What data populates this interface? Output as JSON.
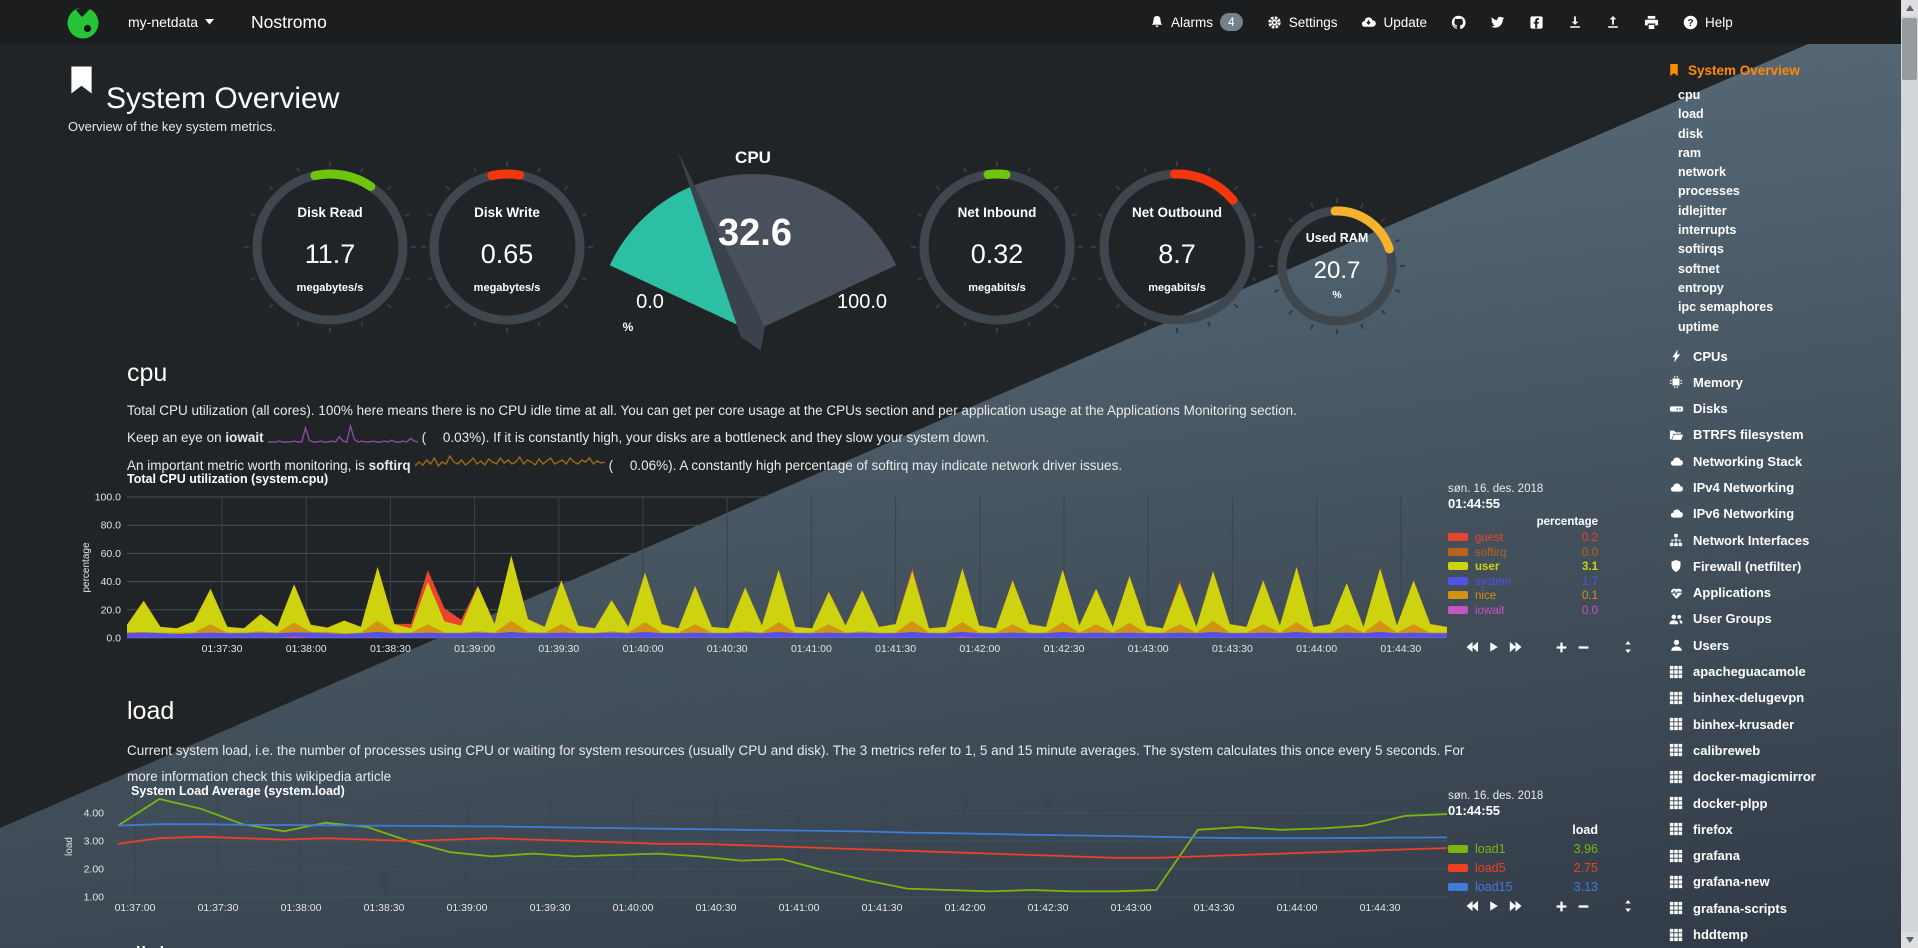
{
  "nav": {
    "hostname": "my-netdata",
    "title": "Nostromo",
    "alarms_label": "Alarms",
    "alarms_count": "4",
    "settings_label": "Settings",
    "update_label": "Update",
    "help_label": "Help",
    "icon_buttons": [
      "github",
      "twitter",
      "facebook",
      "export",
      "import",
      "print"
    ]
  },
  "page": {
    "title": "System Overview",
    "subtitle": "Overview of the key system metrics."
  },
  "gauges": [
    {
      "label": "Disk Read",
      "value": "11.7",
      "units": "megabytes/s",
      "color": "#6fc40e",
      "arc": [
        -12,
        34
      ]
    },
    {
      "label": "Disk Write",
      "value": "0.65",
      "units": "megabytes/s",
      "color": "#f3360b",
      "arc": [
        -12,
        10
      ]
    },
    {
      "label": "Net Inbound",
      "value": "0.32",
      "units": "megabits/s",
      "color": "#6fc40e",
      "arc": [
        -7,
        7
      ]
    },
    {
      "label": "Net Outbound",
      "value": "8.7",
      "units": "megabits/s",
      "color": "#f3360b",
      "arc": [
        -2,
        50
      ]
    },
    {
      "label": "Used RAM",
      "value": "20.7",
      "units": "%",
      "color": "#f5b22c",
      "arc": [
        -2,
        72
      ]
    }
  ],
  "cpu_gauge": {
    "title": "CPU",
    "value": "32.6",
    "min": "0.0",
    "max": "100.0",
    "units": "%",
    "percent": 32.6,
    "fill_color": "#2dbfa3",
    "body_color": "#48515b",
    "needle_color": "#3a424b"
  },
  "cpu_section": {
    "heading": "cpu",
    "line1": "Total CPU utilization (all cores). 100% here means there is no CPU idle time at all. You can get per core usage at the CPUs section and per application usage at the Applications Monitoring section.",
    "line2_pre": "Keep an eye on ",
    "line2_bold": "iowait",
    "line2_val": "0.03%",
    "line2_post": "). If it is constantly high, your disks are a bottleneck and they slow your system down.",
    "line3_pre": "An important metric worth monitoring, is ",
    "line3_bold": "softirq",
    "line3_val": "0.06%",
    "line3_post": "). A constantly high percentage of softirq may indicate network driver issues.",
    "paren_open": "(",
    "sparklines": {
      "iowait": {
        "color": "#8a4ba0",
        "values": [
          0,
          0,
          0,
          0.1,
          0,
          0,
          0,
          0.1,
          0,
          0,
          1.6,
          0.2,
          0,
          0,
          0.1,
          0,
          0,
          0.1,
          0,
          0.6,
          0.1,
          0,
          1.8,
          0.3,
          0,
          0.1,
          0,
          0,
          0.1,
          0,
          0,
          0.1,
          0,
          0.2,
          0,
          0,
          0.1,
          0,
          0.4,
          0.1,
          0
        ]
      },
      "softirq": {
        "color": "#9d6a17",
        "values": [
          0.1,
          0.3,
          0.15,
          0.4,
          0.2,
          0.5,
          0.1,
          0.3,
          0.2,
          0.6,
          0.3,
          0.2,
          0.4,
          0.15,
          0.3,
          0.5,
          0.2,
          0.35,
          0.15,
          0.45,
          0.3,
          0.2,
          0.5,
          0.25,
          0.4,
          0.2,
          0.3,
          0.55,
          0.2,
          0.4,
          0.3,
          0.15,
          0.45,
          0.2,
          0.35,
          0.5,
          0.2,
          0.3,
          0.4,
          0.2,
          0.5,
          0.3,
          0.2,
          0.4,
          0.3,
          0.5,
          0.2,
          0.35,
          0.25,
          0.3
        ]
      }
    }
  },
  "load_section": {
    "heading": "load",
    "text": "Current system load, i.e. the number of processes using CPU or waiting for system resources (usually CPU and disk). The 3 metrics refer to 1, 5 and 15 minute averages. The system calculates this once every 5 seconds. For more information check this wikipedia article"
  },
  "disk_section": {
    "heading": "disk"
  },
  "chart_toolbar_icons": [
    "pan-backward",
    "play",
    "pan-forward",
    "zoom-in",
    "zoom-out",
    "vertical-resize"
  ],
  "chart_data": [
    {
      "type": "area",
      "title": "Total CPU utilization (system.cpu)",
      "date": "søn. 16. des. 2018",
      "time": "01:44:55",
      "units_header": "percentage",
      "ylabel": "percentage",
      "ylim": [
        0,
        100
      ],
      "ytick_vals": [
        0,
        20,
        40,
        60,
        80,
        100
      ],
      "ytick_labels": [
        "0.0",
        "20.0",
        "40.0",
        "60.0",
        "80.0",
        "100.0"
      ],
      "xticks": [
        "01:37:30",
        "01:38:00",
        "01:38:30",
        "01:39:00",
        "01:39:30",
        "01:40:00",
        "01:40:30",
        "01:41:00",
        "01:41:30",
        "01:42:00",
        "01:42:30",
        "01:43:00",
        "01:43:30",
        "01:44:00",
        "01:44:30"
      ],
      "legend": [
        {
          "name": "guest",
          "value": "0.2",
          "color": "#e8442e"
        },
        {
          "name": "softirq",
          "value": "0.0",
          "color": "#b8641a"
        },
        {
          "name": "user",
          "value": "3.1",
          "color": "#cdd30e",
          "selected": true
        },
        {
          "name": "system",
          "value": "1.7",
          "color": "#5153e6"
        },
        {
          "name": "nice",
          "value": "0.1",
          "color": "#d39312"
        },
        {
          "name": "iowait",
          "value": "0.0",
          "color": "#c455c4"
        }
      ],
      "stack_order_bottom_to_top": [
        "iowait",
        "system",
        "nice",
        "user",
        "guest",
        "softirq"
      ],
      "series": {
        "user": [
          5,
          22,
          4,
          3,
          8,
          25,
          4,
          3,
          12,
          4,
          27,
          5,
          3,
          9,
          4,
          38,
          6,
          3,
          30,
          8,
          5,
          32,
          6,
          46,
          9,
          4,
          31,
          5,
          3,
          22,
          4,
          35,
          6,
          3,
          27,
          4,
          3,
          31,
          5,
          37,
          4,
          3,
          23,
          5,
          29,
          4,
          6,
          35,
          3,
          4,
          38,
          5,
          3,
          31,
          6,
          4,
          37,
          5,
          25,
          4,
          33,
          5,
          3,
          29,
          4,
          35,
          6,
          4,
          31,
          5,
          39,
          4,
          6,
          29,
          4,
          37,
          5,
          31,
          6,
          4
        ],
        "system": [
          3,
          3.5,
          3,
          2.5,
          3,
          3.5,
          3,
          3,
          3.5,
          3,
          3,
          3.5,
          3,
          2.5,
          3,
          4,
          3,
          3,
          3.5,
          3,
          3,
          3.5,
          3,
          4,
          3,
          3,
          3.5,
          3,
          3,
          3.5,
          3,
          4,
          3,
          3,
          3.5,
          3,
          3,
          3.5,
          3,
          4,
          3,
          3,
          3.5,
          3,
          3.5,
          3,
          3,
          4,
          3,
          3,
          3.5,
          3,
          3,
          3.5,
          3,
          3,
          4,
          3,
          3.5,
          3,
          3.5,
          3,
          3,
          3.5,
          3,
          4,
          3,
          3,
          3.5,
          3,
          4,
          3,
          3,
          3.5,
          3,
          4,
          3,
          3.5,
          3,
          3
        ],
        "nice": [
          1,
          0.5,
          0.5,
          1,
          0.5,
          6,
          0.5,
          0.5,
          1,
          0.5,
          7,
          0.5,
          1,
          0.5,
          0.5,
          8,
          0.5,
          0.5,
          6,
          0.5,
          0.5,
          1,
          0.5,
          8,
          1,
          0.5,
          6,
          0.5,
          0.5,
          1,
          0.5,
          7,
          0.5,
          0.5,
          6,
          0.5,
          0.5,
          1,
          0.5,
          7,
          0.5,
          0.5,
          6,
          0.5,
          1,
          0.5,
          0.5,
          8,
          0.5,
          0.5,
          7,
          0.5,
          0.5,
          6,
          0.5,
          0.5,
          7,
          0.5,
          6,
          0.5,
          7,
          0.5,
          0.5,
          6,
          0.5,
          8,
          0.5,
          0.5,
          6,
          0.5,
          7,
          0.5,
          0.5,
          6,
          0.5,
          8,
          0.5,
          6,
          0.5,
          0.5
        ],
        "guest": [
          0,
          0,
          0,
          0,
          0,
          0,
          0,
          0,
          0,
          0,
          0,
          0,
          0,
          0,
          0,
          0,
          0,
          3,
          8,
          9,
          4,
          0,
          0,
          0,
          0,
          0,
          0,
          0,
          0,
          0,
          0,
          0,
          0,
          0,
          0,
          0,
          0,
          0,
          0,
          0,
          0,
          0,
          0,
          0,
          0,
          0,
          0,
          2,
          0,
          0,
          0,
          0,
          0,
          0,
          0,
          0,
          0,
          0,
          0,
          0,
          0,
          0,
          0,
          1.5,
          0,
          0,
          0,
          0,
          0,
          0,
          0,
          0,
          0,
          0,
          0,
          0,
          0,
          0,
          0,
          0
        ],
        "iowait": [
          0.3,
          0.3,
          0.3,
          0.3,
          0.3,
          0.3,
          0.3,
          0.3,
          0.3,
          0.3,
          1,
          0.3,
          0.3,
          0.3,
          0.3,
          0.3,
          0.3,
          0.3,
          0.3,
          0.3,
          0.3,
          0.3,
          0.3,
          0.3,
          0.3,
          0.3,
          0.3,
          0.3,
          0.3,
          0.3,
          0.3,
          0.3,
          0.3,
          0.3,
          0.3,
          0.3,
          0.3,
          0.3,
          0.3,
          0.3,
          0.3,
          0.3,
          0.3,
          0.3,
          0.3,
          0.3,
          0.3,
          0.3,
          0.3,
          0.3,
          0.8,
          0.3,
          0.3,
          0.3,
          0.3,
          0.3,
          0.3,
          0.3,
          0.3,
          0.3,
          0.3,
          0.3,
          0.3,
          0.3,
          0.3,
          0.3,
          0.3,
          0.3,
          0.3,
          0.3,
          0.3,
          0.3,
          0.3,
          0.3,
          0.3,
          0.3,
          0.3,
          0.3,
          0.3,
          0.3
        ],
        "softirq": [
          0.2,
          0.2,
          0.2,
          0.2,
          0.2,
          0.2,
          0.2,
          0.2,
          0.2,
          0.2,
          0.2,
          0.2,
          0.2,
          0.2,
          0.2,
          0.2,
          0.2,
          0.2,
          0.2,
          0.2,
          0.2,
          0.2,
          0.2,
          0.2,
          0.2,
          0.2,
          0.2,
          0.2,
          0.2,
          0.2,
          0.2,
          0.2,
          0.2,
          0.2,
          0.2,
          0.2,
          0.2,
          0.2,
          0.2,
          0.2,
          0.2,
          0.2,
          0.2,
          0.2,
          0.2,
          0.2,
          0.2,
          0.2,
          0.2,
          0.2,
          0.2,
          0.2,
          0.2,
          0.2,
          0.2,
          0.2,
          0.2,
          0.2,
          0.2,
          0.2,
          0.2,
          0.2,
          0.2,
          0.2,
          0.2,
          0.2,
          0.2,
          0.2,
          0.2,
          0.2,
          0.2,
          0.2,
          0.2,
          0.2,
          0.2,
          0.2,
          0.2,
          0.2,
          0.2,
          0.2
        ]
      }
    },
    {
      "type": "line",
      "title": "System Load Average (system.load)",
      "date": "søn. 16. des. 2018",
      "time": "01:44:55",
      "units_header": "load",
      "ylabel": "load",
      "ylim": [
        1,
        4.6
      ],
      "ytick_vals": [
        1,
        2,
        3,
        4
      ],
      "ytick_labels": [
        "1.00",
        "2.00",
        "3.00",
        "4.00"
      ],
      "xticks": [
        "01:37:00",
        "01:37:30",
        "01:38:00",
        "01:38:30",
        "01:39:00",
        "01:39:30",
        "01:40:00",
        "01:40:30",
        "01:41:00",
        "01:41:30",
        "01:42:00",
        "01:42:30",
        "01:43:00",
        "01:43:30",
        "01:44:00",
        "01:44:30"
      ],
      "legend": [
        {
          "name": "load1",
          "value": "3.96",
          "color": "#79b60e"
        },
        {
          "name": "load5",
          "value": "2.75",
          "color": "#ee4023"
        },
        {
          "name": "load15",
          "value": "3.13",
          "color": "#3f7bd9"
        }
      ],
      "series": {
        "load1": [
          3.55,
          4.5,
          4.15,
          3.6,
          3.35,
          3.65,
          3.5,
          3.0,
          2.6,
          2.45,
          2.55,
          2.45,
          2.5,
          2.55,
          2.45,
          2.3,
          2.35,
          1.95,
          1.6,
          1.3,
          1.25,
          1.2,
          1.25,
          1.2,
          1.2,
          1.25,
          3.4,
          3.5,
          3.4,
          3.45,
          3.55,
          3.9,
          3.96
        ],
        "load5": [
          2.9,
          3.1,
          3.15,
          3.1,
          3.05,
          3.1,
          3.05,
          3.0,
          3.05,
          3.1,
          3.05,
          3.0,
          2.95,
          2.9,
          2.9,
          2.85,
          2.8,
          2.75,
          2.7,
          2.65,
          2.6,
          2.55,
          2.5,
          2.45,
          2.4,
          2.4,
          2.45,
          2.5,
          2.55,
          2.6,
          2.65,
          2.7,
          2.75
        ],
        "load15": [
          3.55,
          3.6,
          3.6,
          3.58,
          3.57,
          3.56,
          3.55,
          3.54,
          3.53,
          3.52,
          3.5,
          3.48,
          3.46,
          3.44,
          3.42,
          3.4,
          3.38,
          3.36,
          3.34,
          3.3,
          3.28,
          3.25,
          3.22,
          3.2,
          3.18,
          3.15,
          3.12,
          3.1,
          3.1,
          3.1,
          3.11,
          3.12,
          3.13
        ]
      }
    }
  ],
  "sidebar": {
    "active_label": "System Overview",
    "subitems": [
      "cpu",
      "load",
      "disk",
      "ram",
      "network",
      "processes",
      "idlejitter",
      "interrupts",
      "softirqs",
      "softnet",
      "entropy",
      "ipc semaphores",
      "uptime"
    ],
    "menu": [
      {
        "icon": "bolt",
        "label": "CPUs"
      },
      {
        "icon": "microchip",
        "label": "Memory"
      },
      {
        "icon": "hdd",
        "label": "Disks"
      },
      {
        "icon": "folder-open",
        "label": "BTRFS filesystem"
      },
      {
        "icon": "cloud",
        "label": "Networking Stack"
      },
      {
        "icon": "cloud",
        "label": "IPv4 Networking"
      },
      {
        "icon": "cloud",
        "label": "IPv6 Networking"
      },
      {
        "icon": "sitemap",
        "label": "Network Interfaces"
      },
      {
        "icon": "shield",
        "label": "Firewall (netfilter)"
      },
      {
        "icon": "heartbeat",
        "label": "Applications"
      },
      {
        "icon": "users",
        "label": "User Groups"
      },
      {
        "icon": "user",
        "label": "Users"
      },
      {
        "icon": "th",
        "label": "apacheguacamole"
      },
      {
        "icon": "th",
        "label": "binhex-delugevpn"
      },
      {
        "icon": "th",
        "label": "binhex-krusader"
      },
      {
        "icon": "th",
        "label": "calibreweb"
      },
      {
        "icon": "th",
        "label": "docker-magicmirror"
      },
      {
        "icon": "th",
        "label": "docker-plpp"
      },
      {
        "icon": "th",
        "label": "firefox"
      },
      {
        "icon": "th",
        "label": "grafana"
      },
      {
        "icon": "th",
        "label": "grafana-new"
      },
      {
        "icon": "th",
        "label": "grafana-scripts"
      },
      {
        "icon": "th",
        "label": "hddtemp"
      }
    ]
  }
}
